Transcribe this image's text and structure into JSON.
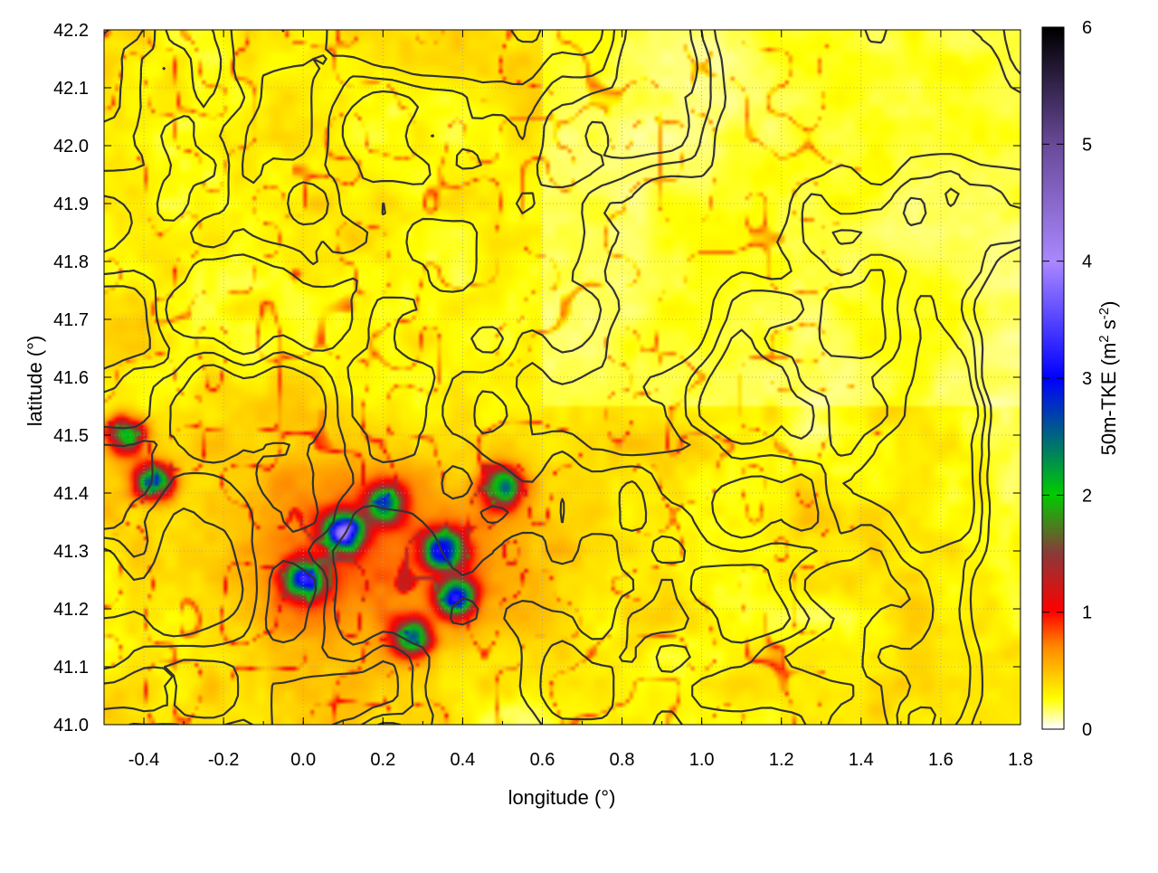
{
  "chart_data": {
    "type": "heatmap",
    "title": "",
    "xlabel": "longitude (°)",
    "ylabel": "latitude (°)",
    "colorbar_label": "50m-TKE (m² s⁻²)",
    "colorbar_label_parts": {
      "main": "50m-TKE (m",
      "sup1": "2",
      "mid": " s",
      "sup2": "-2",
      "end": ")"
    },
    "xlim": [
      -0.5,
      1.8
    ],
    "ylim": [
      41.0,
      42.2
    ],
    "x_ticks": [
      -0.4,
      -0.2,
      0.0,
      0.2,
      0.4,
      0.6,
      0.8,
      1.0,
      1.2,
      1.4,
      1.6,
      1.8
    ],
    "x_tick_labels": [
      "-0.4",
      "-0.2",
      "0.0",
      "0.2",
      "0.4",
      "0.6",
      "0.8",
      "1.0",
      "1.2",
      "1.4",
      "1.6",
      "1.8"
    ],
    "y_ticks": [
      41.0,
      41.1,
      41.2,
      41.3,
      41.4,
      41.5,
      41.6,
      41.7,
      41.8,
      41.9,
      42.0,
      42.1,
      42.2
    ],
    "y_tick_labels": [
      "41.0",
      "41.1",
      "41.2",
      "41.3",
      "41.4",
      "41.5",
      "41.6",
      "41.7",
      "41.8",
      "41.9",
      "42.0",
      "42.1",
      "42.2"
    ],
    "grid": true,
    "colorbar": {
      "range": [
        0,
        6
      ],
      "ticks": [
        0,
        1,
        2,
        3,
        4,
        5,
        6
      ],
      "tick_labels": [
        "0",
        "1",
        "2",
        "3",
        "4",
        "5",
        "6"
      ],
      "stops": [
        {
          "value": 0.0,
          "color": "#ffffff"
        },
        {
          "value": 0.25,
          "color": "#ffff00"
        },
        {
          "value": 0.7,
          "color": "#ff8800"
        },
        {
          "value": 1.0,
          "color": "#ff0000"
        },
        {
          "value": 1.5,
          "color": "#8b3a3a"
        },
        {
          "value": 2.0,
          "color": "#00cc00"
        },
        {
          "value": 3.0,
          "color": "#0000ff"
        },
        {
          "value": 4.0,
          "color": "#aa88ff"
        },
        {
          "value": 5.0,
          "color": "#6a4a9a"
        },
        {
          "value": 6.0,
          "color": "#000000"
        }
      ]
    },
    "field_description": "Gridded turbulent kinetic energy at 50 m; mostly 0–0.5 (white/yellow), bands ~1 (orange/red) along ridges, peaks 2–4 (green/blue/violet) near lon 0.0–0.5, lat 41.2–41.45",
    "hotspots": [
      {
        "lon": 0.1,
        "lat": 41.33,
        "value": 3.8
      },
      {
        "lon": 0.0,
        "lat": 41.25,
        "value": 3.0
      },
      {
        "lon": 0.35,
        "lat": 41.3,
        "value": 3.2
      },
      {
        "lon": 0.38,
        "lat": 41.22,
        "value": 2.8
      },
      {
        "lon": 0.5,
        "lat": 41.41,
        "value": 2.4
      },
      {
        "lon": -0.45,
        "lat": 41.5,
        "value": 2.2
      },
      {
        "lon": -0.38,
        "lat": 41.42,
        "value": 2.6
      },
      {
        "lon": 0.27,
        "lat": 41.15,
        "value": 2.5
      },
      {
        "lon": 0.2,
        "lat": 41.38,
        "value": 2.4
      }
    ],
    "contour_color": "#333333"
  }
}
